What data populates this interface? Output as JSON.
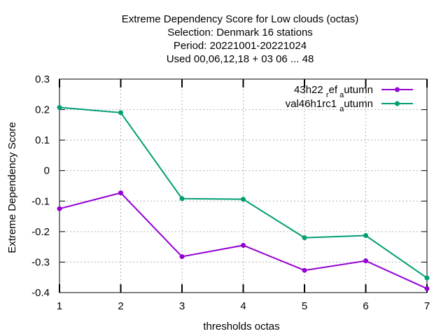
{
  "chart_data": {
    "type": "line",
    "title_lines": [
      "Extreme Dependency Score  for Low clouds (octas)",
      "Selection: Denmark     16 stations",
      "Period: 20221001-20221024",
      "Used  00,06,12,18  + 03 06 ... 48"
    ],
    "xlabel": "thresholds octas",
    "ylabel": "Extreme Dependency Score",
    "x": [
      1,
      2,
      3,
      4,
      5,
      6,
      7
    ],
    "xlim": [
      1,
      7
    ],
    "ylim": [
      -0.4,
      0.3
    ],
    "yticks": [
      -0.4,
      -0.3,
      -0.2,
      -0.1,
      0,
      0.1,
      0.2,
      0.3
    ],
    "ytick_labels": [
      "-0.4",
      "-0.3",
      "-0.2",
      "-0.1",
      "0",
      "0.1",
      "0.2",
      "0.3"
    ],
    "xtick_labels": [
      "1",
      "2",
      "3",
      "4",
      "5",
      "6",
      "7"
    ],
    "grid": true,
    "legend_position": "top-right",
    "series": [
      {
        "name_parts": {
          "main": "43h22",
          "sub1": "r",
          "mid": "ef",
          "sub2": "a",
          "tail": "utumn"
        },
        "color": "#9400d3",
        "values": [
          -0.125,
          -0.073,
          -0.282,
          -0.245,
          -0.327,
          -0.296,
          -0.387
        ]
      },
      {
        "name_parts": {
          "main": "val46h1rc1",
          "sub1": "",
          "mid": "",
          "sub2": "a",
          "tail": "utumn"
        },
        "color": "#009e73",
        "values": [
          0.207,
          0.19,
          -0.092,
          -0.094,
          -0.22,
          -0.213,
          -0.352
        ]
      }
    ]
  }
}
